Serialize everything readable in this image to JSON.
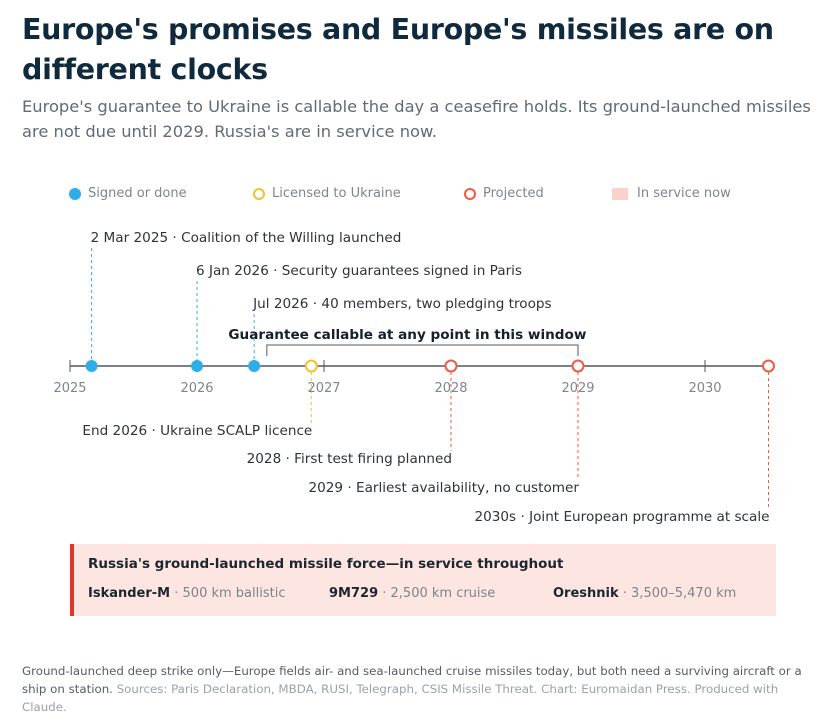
{
  "header": {
    "title": "Europe's promises and Europe's missiles are on different clocks",
    "subtitle": "Europe's guarantee to Ukraine is callable the day a ceasefire holds. Its ground-launched missiles are not due until 2029. Russia's are in service now."
  },
  "legend": {
    "items": [
      {
        "label": "Signed or done",
        "marker": "filled-circle",
        "color": "#2eaee8"
      },
      {
        "label": "Licensed to Ukraine",
        "marker": "open-circle",
        "color": "#f2c12e"
      },
      {
        "label": "Projected",
        "marker": "open-circle",
        "color": "#f15a41"
      },
      {
        "label": "In service now",
        "marker": "square",
        "color": "#fad2cb"
      }
    ]
  },
  "timeline": {
    "range": [
      "2025",
      "2030.5"
    ],
    "axis_years": [
      "2025",
      "2026",
      "2027",
      "2028",
      "2029",
      "2030"
    ],
    "window_label": "Guarantee callable at any point in this window",
    "window": {
      "start": "Jul 2026",
      "end": "2029"
    },
    "events": [
      {
        "date": "2 Mar 2025",
        "t": 2025.17,
        "text": "2 Mar 2025 · Coalition of the Willing launched",
        "status": "signed",
        "color": "#2eaee8"
      },
      {
        "date": "6 Jan 2026",
        "t": 2026.0,
        "text": "6 Jan 2026 · Security guarantees signed in Paris",
        "status": "signed",
        "color": "#2eaee8"
      },
      {
        "date": "Jul 2026",
        "t": 2026.45,
        "text": "Jul 2026 · 40 members, two pledging troops",
        "status": "signed",
        "color": "#2eaee8"
      },
      {
        "date": "End 2026",
        "t": 2026.9,
        "text": "End 2026 · Ukraine SCALP licence",
        "status": "licensed",
        "color": "#f2c12e"
      },
      {
        "date": "2028",
        "t": 2028.0,
        "text": "2028 · First test firing planned",
        "status": "projected",
        "color": "#f15a41"
      },
      {
        "date": "2029",
        "t": 2029.0,
        "text": "2029 · Earliest availability, no customer",
        "status": "projected",
        "color": "#f15a41"
      },
      {
        "date": "2030s",
        "t": 2030.5,
        "text": "2030s · Joint European programme at scale",
        "status": "projected",
        "color": "#f15a41"
      }
    ]
  },
  "russia": {
    "title": "Russia's ground-launched missile force—in service throughout",
    "systems": [
      {
        "name": "Iskander-M",
        "detail": " · 500 km ballistic"
      },
      {
        "name": "9M729",
        "detail": " · 2,500 km cruise"
      },
      {
        "name": "Oreshnik",
        "detail": " · 3,500–5,470 km"
      }
    ],
    "accent": "#e4332b",
    "background": "#fde6e1"
  },
  "footnote": {
    "note": "Ground-launched deep strike only—Europe fields air- and sea-launched cruise missiles today, but both need a surviving aircraft or a ship on station.",
    "sources": "Sources: Paris Declaration, MBDA, RUSI, Telegraph, CSIS Missile Threat. Chart: Euromaidan Press. Produced with Claude."
  }
}
